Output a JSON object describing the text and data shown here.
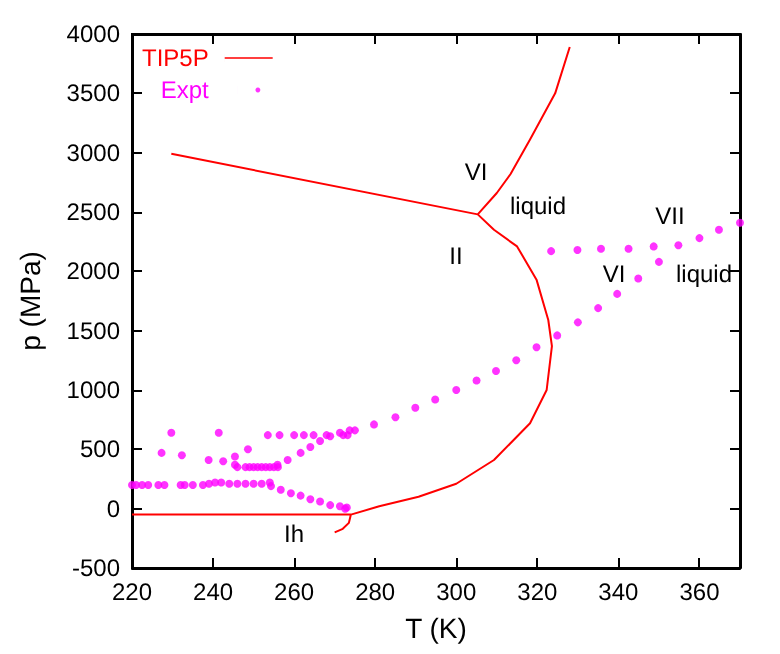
{
  "chart_data": {
    "type": "line",
    "xlabel": "T (K)",
    "ylabel": "p (MPa)",
    "xlim": [
      220,
      370
    ],
    "xticks": [
      220,
      240,
      260,
      280,
      300,
      320,
      340,
      360
    ],
    "ylim": [
      -500,
      4000
    ],
    "yticks": [
      -500,
      0,
      500,
      1000,
      1500,
      2000,
      2500,
      3000,
      3500,
      4000
    ],
    "legend": "top left",
    "series": [
      {
        "name": "TIP5P",
        "color": "#ff0000",
        "marker": "none",
        "x": [
          220,
          274,
          281,
          290.7,
          300,
          309.3,
          318.2,
          322.3,
          323.6,
          322.7,
          319.8,
          315,
          309.3,
          305.3,
          310,
          313.4,
          318.2,
          324.4,
          328,
          null,
          229.7,
          305.3,
          null,
          270,
          272,
          273.5,
          274
        ],
        "values": [
          -50,
          -50,
          20,
          100,
          210,
          410,
          720,
          1000,
          1370,
          1590,
          1930,
          2210,
          2350,
          2480,
          2660,
          2820,
          3110,
          3500,
          3890,
          null,
          2990,
          2480,
          null,
          -200,
          -170,
          -120,
          -50
        ]
      },
      {
        "name": "Expt",
        "type": "scatter",
        "color": "#ff00ff",
        "marker": "circle",
        "x": [
          275,
          279.7,
          285,
          289.9,
          294.8,
          300,
          305,
          309.8,
          314.8,
          319.8,
          324.9,
          330,
          335,
          339.7,
          344.9,
          350,
          323.4,
          329.9,
          335.7,
          342.5,
          348.7,
          354.8,
          360,
          364.8,
          370,
          229.7,
          241.4,
          253.5,
          256.4,
          260,
          262.4,
          264.8,
          268,
          272.1,
          273.2,
          245.4,
          248.6,
          255.9,
          258.4,
          261.6,
          264,
          266.4,
          268.9,
          271.3,
          273.7,
          254.3,
          256.7,
          259.2,
          261.6,
          264,
          266.4,
          268.9,
          271.3,
          272.6,
          273,
          220,
          221,
          222.5,
          224,
          226.5,
          228,
          232,
          233,
          235,
          237.5,
          239,
          240.5,
          242,
          244,
          246,
          248,
          250,
          252,
          254,
          227.3,
          232.3,
          238.9,
          242.5,
          245.4,
          246,
          248,
          249,
          250,
          251,
          252,
          253,
          254,
          255,
          256
        ],
        "values": [
          660,
          710,
          770,
          850,
          920,
          1000,
          1080,
          1160,
          1250,
          1360,
          1460,
          1570,
          1690,
          1810,
          1940,
          2080,
          2170,
          2180,
          2190,
          2190,
          2210,
          2220,
          2280,
          2350,
          2410,
          640,
          640,
          620,
          620,
          620,
          620,
          620,
          620,
          620,
          620,
          440,
          500,
          370,
          410,
          470,
          520,
          570,
          610,
          640,
          660,
          190,
          160,
          130,
          110,
          80,
          60,
          30,
          20,
          0,
          10,
          200,
          200,
          200,
          200,
          200,
          200,
          200,
          200,
          200,
          200,
          210,
          220,
          220,
          210,
          210,
          210,
          210,
          210,
          220,
          470,
          450,
          410,
          400,
          370,
          350,
          350,
          350,
          350,
          350,
          350,
          350,
          350,
          350,
          350
        ]
      }
    ],
    "annotations": [
      "VI",
      "liquid",
      "II",
      "VII",
      "VI",
      "liquid",
      "Ih"
    ]
  }
}
